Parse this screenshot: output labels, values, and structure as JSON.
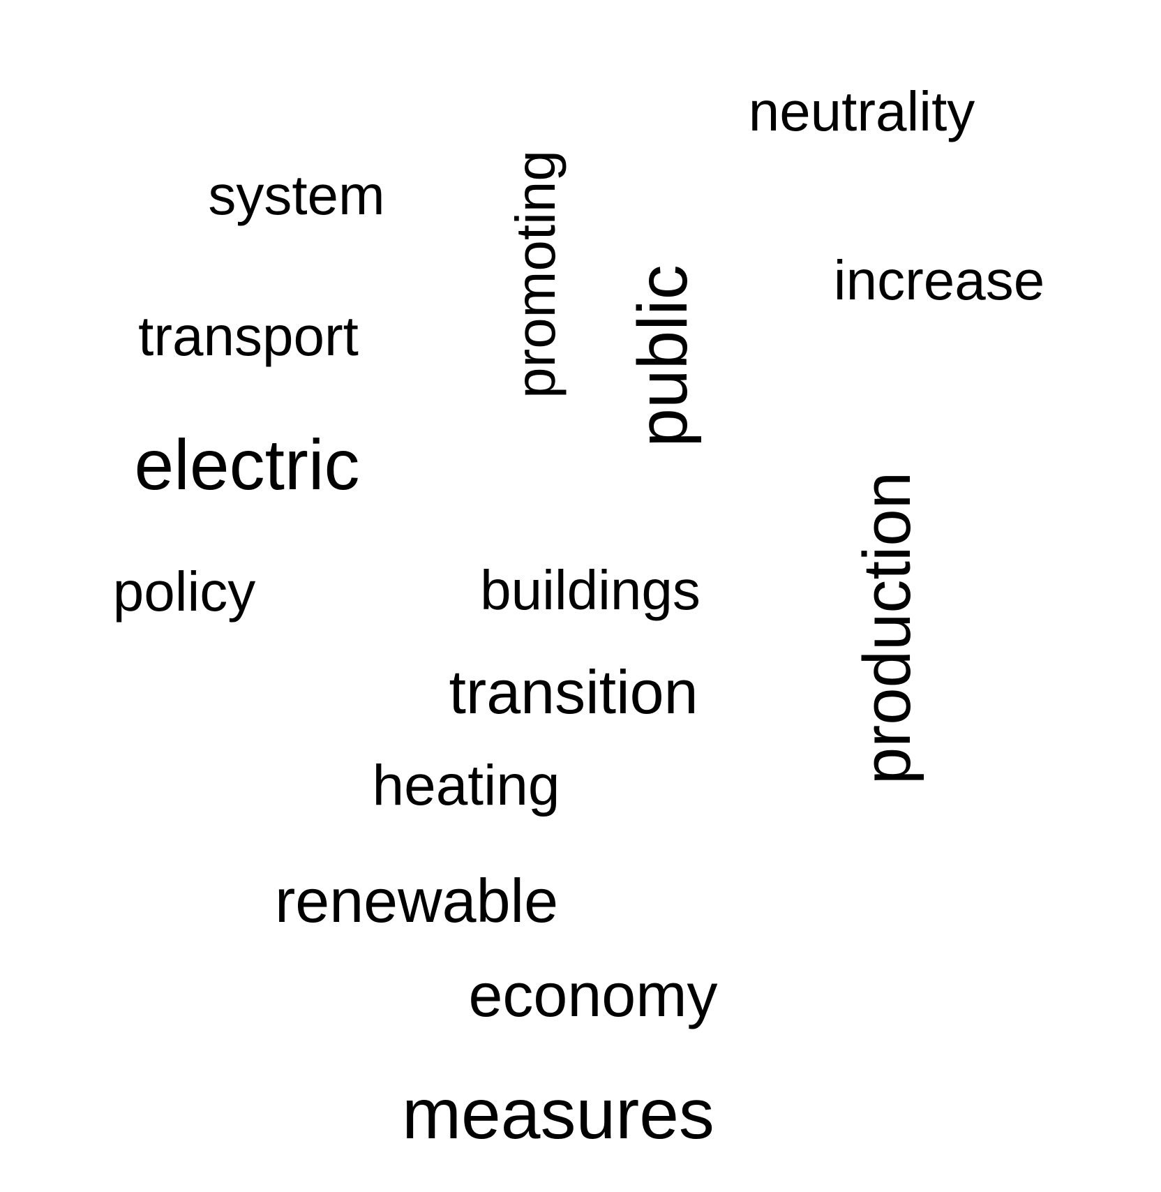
{
  "word_cloud": {
    "words": {
      "neutrality": "neutrality",
      "system": "system",
      "promoting": "promoting",
      "public": "public",
      "increase": "increase",
      "transport": "transport",
      "electric": "electric",
      "production": "production",
      "policy": "policy",
      "buildings": "buildings",
      "transition": "transition",
      "heating": "heating",
      "renewable": "renewable",
      "economy": "economy",
      "measures": "measures"
    },
    "orientation": {
      "neutrality": "horizontal",
      "system": "horizontal",
      "promoting": "vertical",
      "public": "vertical",
      "increase": "horizontal",
      "transport": "horizontal",
      "electric": "horizontal",
      "production": "vertical",
      "policy": "horizontal",
      "buildings": "horizontal",
      "transition": "horizontal",
      "heating": "horizontal",
      "renewable": "horizontal",
      "economy": "horizontal",
      "measures": "horizontal"
    },
    "text_color": "#000000",
    "background_color": "#ffffff"
  }
}
